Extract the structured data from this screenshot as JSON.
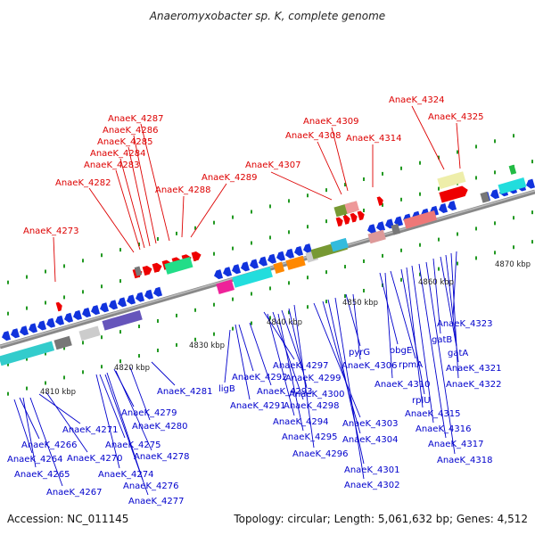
{
  "title": "Anaeromyxobacter sp. K, complete genome",
  "accession": "Accession: NC_011145",
  "topology": "Topology: circular; Length: 5,061,632 bp; Genes: 4,512",
  "colors": {
    "top_labels": "#dd0000",
    "bottom_labels": "#0000cc",
    "backbone": "#888888",
    "tick": "#229922"
  },
  "kbp_labels": [
    "4810 kbp",
    "4820 kbp",
    "4830 kbp",
    "4840 kbp",
    "4850 kbp",
    "4860 kbp",
    "4870 kbp"
  ],
  "top_labels": [
    "AnaeK_4273",
    "AnaeK_4282",
    "AnaeK_4283",
    "AnaeK_4284",
    "AnaeK_4285",
    "AnaeK_4286",
    "AnaeK_4287",
    "AnaeK_4288",
    "AnaeK_4289",
    "AnaeK_4307",
    "AnaeK_4308",
    "AnaeK_4309",
    "AnaeK_4314",
    "AnaeK_4324",
    "AnaeK_4325"
  ],
  "bottom_labels": [
    "AnaeK_4266",
    "AnaeK_4264",
    "AnaeK_4265",
    "AnaeK_4267",
    "AnaeK_4271",
    "AnaeK_4270",
    "AnaeK_4275",
    "AnaeK_4274",
    "AnaeK_4276",
    "AnaeK_4277",
    "AnaeK_4278",
    "AnaeK_4279",
    "AnaeK_4280",
    "AnaeK_4281",
    "ligB",
    "AnaeK_4292",
    "AnaeK_4291",
    "AnaeK_4293",
    "AnaeK_4297",
    "AnaeK_4299",
    "AnaeK_4300",
    "AnaeK_4298",
    "AnaeK_4294",
    "AnaeK_4295",
    "AnaeK_4296",
    "pyrG",
    "AnaeK_4306",
    "AnaeK_4303",
    "AnaeK_4304",
    "AnaeK_4301",
    "AnaeK_4302",
    "obgE",
    "rpmA",
    "AnaeK_4310",
    "rplU",
    "AnaeK_4315",
    "AnaeK_4316",
    "AnaeK_4317",
    "AnaeK_4318",
    "gatB",
    "gatA",
    "AnaeK_4321",
    "AnaeK_4322",
    "AnaeK_4323"
  ]
}
